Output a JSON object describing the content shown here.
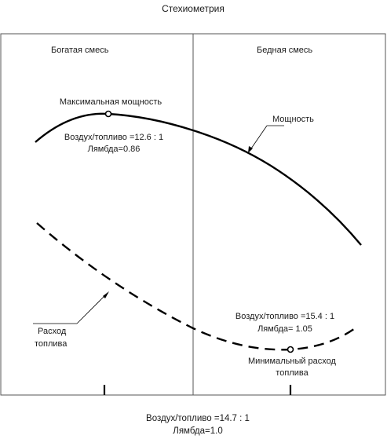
{
  "title": "Стехиометрия",
  "zones": {
    "rich": "Богатая смесь",
    "lean": "Бедная смесь"
  },
  "power_curve": {
    "label": "Мощность",
    "max_label": "Максимальная мощность",
    "max_ratio": "Воздух/топливо =12.6 : 1",
    "max_lambda": "Лямбда=0.86"
  },
  "consumption_curve": {
    "label_line1": "Расход",
    "label_line2": "топлива",
    "min_label_line1": "Минимальный расход",
    "min_label_line2": "топлива",
    "min_ratio": "Воздух/топливо =15.4 : 1",
    "min_lambda": "Лямбда= 1.05"
  },
  "stoichiometric": {
    "ratio": "Воздух/топливо =14.7 : 1",
    "lambda": "Лямбда=1.0"
  }
}
